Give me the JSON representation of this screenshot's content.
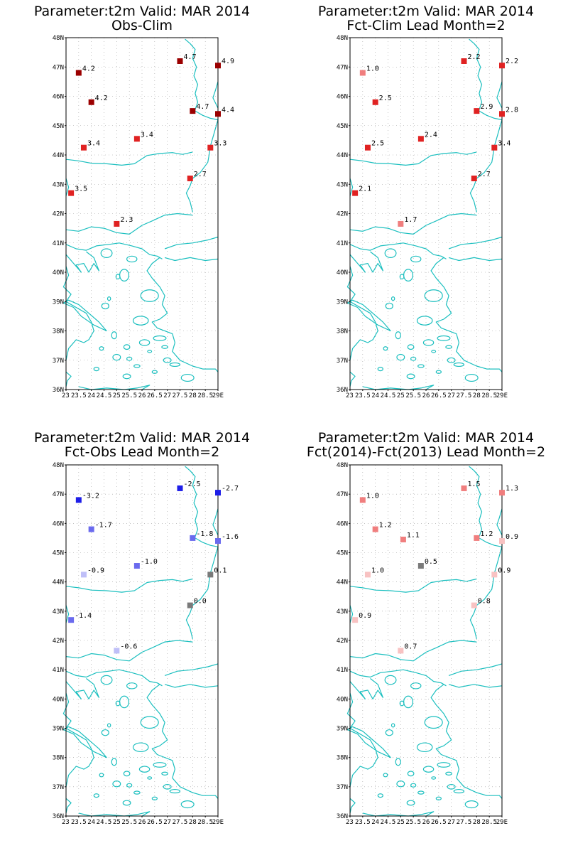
{
  "colors": {
    "coast": "#1bbfbf",
    "grid": "#9a9a9a",
    "neutral": "#7a7a7a"
  },
  "axes": {
    "lon_ticks": [
      "23",
      "23.5",
      "24",
      "24.5",
      "25",
      "25.5",
      "26",
      "26.5",
      "27",
      "27.5",
      "28",
      "28.5",
      "29E"
    ],
    "lat_ticks": [
      "36N",
      "37N",
      "38N",
      "39N",
      "40N",
      "41N",
      "42N",
      "43N",
      "44N",
      "45N",
      "46N",
      "47N",
      "48N"
    ]
  },
  "panels": [
    {
      "title1": "Parameter:t2m Valid: MAR 2014",
      "title2": "Obs-Clim",
      "stations": [
        {
          "lon": 23.5,
          "lat": 46.8,
          "value": "4.2",
          "color": "#9b0000"
        },
        {
          "lon": 24.0,
          "lat": 45.8,
          "value": "4.2",
          "color": "#9b0000"
        },
        {
          "lon": 27.5,
          "lat": 47.2,
          "value": "4.7",
          "color": "#9b0000"
        },
        {
          "lon": 29.0,
          "lat": 47.05,
          "value": "4.9",
          "color": "#9b0000"
        },
        {
          "lon": 28.0,
          "lat": 45.5,
          "value": "4.7",
          "color": "#9b0000"
        },
        {
          "lon": 29.0,
          "lat": 45.4,
          "value": "4.4",
          "color": "#9b0000"
        },
        {
          "lon": 23.7,
          "lat": 44.25,
          "value": "3.4",
          "color": "#e02222"
        },
        {
          "lon": 25.8,
          "lat": 44.55,
          "value": "3.4",
          "color": "#e02222"
        },
        {
          "lon": 28.7,
          "lat": 44.25,
          "value": "3.3",
          "color": "#e02222"
        },
        {
          "lon": 27.9,
          "lat": 43.2,
          "value": "2.7",
          "color": "#e02222"
        },
        {
          "lon": 23.2,
          "lat": 42.7,
          "value": "3.5",
          "color": "#e02222"
        },
        {
          "lon": 25.0,
          "lat": 41.65,
          "value": "2.3",
          "color": "#e02222"
        }
      ]
    },
    {
      "title1": "Parameter:t2m Valid: MAR 2014",
      "title2": "Fct-Clim Lead Month=2",
      "stations": [
        {
          "lon": 23.5,
          "lat": 46.8,
          "value": "1.0",
          "color": "#f07e7e"
        },
        {
          "lon": 24.0,
          "lat": 45.8,
          "value": "2.5",
          "color": "#e02222"
        },
        {
          "lon": 27.5,
          "lat": 47.2,
          "value": "2.2",
          "color": "#e02222"
        },
        {
          "lon": 29.0,
          "lat": 47.05,
          "value": "2.2",
          "color": "#e02222"
        },
        {
          "lon": 28.0,
          "lat": 45.5,
          "value": "2.9",
          "color": "#e02222"
        },
        {
          "lon": 29.0,
          "lat": 45.4,
          "value": "2.8",
          "color": "#e02222"
        },
        {
          "lon": 23.7,
          "lat": 44.25,
          "value": "2.5",
          "color": "#e02222"
        },
        {
          "lon": 25.8,
          "lat": 44.55,
          "value": "2.4",
          "color": "#e02222"
        },
        {
          "lon": 28.7,
          "lat": 44.25,
          "value": "3.4",
          "color": "#e02222"
        },
        {
          "lon": 27.9,
          "lat": 43.2,
          "value": "2.7",
          "color": "#e02222"
        },
        {
          "lon": 23.2,
          "lat": 42.7,
          "value": "2.1",
          "color": "#e02222"
        },
        {
          "lon": 25.0,
          "lat": 41.65,
          "value": "1.7",
          "color": "#f07e7e"
        }
      ]
    },
    {
      "title1": "Parameter:t2m Valid: MAR 2014",
      "title2": "Fct-Obs Lead Month=2",
      "stations": [
        {
          "lon": 23.5,
          "lat": 46.8,
          "value": "-3.2",
          "color": "#1e1ee8"
        },
        {
          "lon": 24.0,
          "lat": 45.8,
          "value": "-1.7",
          "color": "#6a6aee"
        },
        {
          "lon": 27.5,
          "lat": 47.2,
          "value": "-2.5",
          "color": "#1e1ee8"
        },
        {
          "lon": 29.0,
          "lat": 47.05,
          "value": "-2.7",
          "color": "#1e1ee8"
        },
        {
          "lon": 28.0,
          "lat": 45.5,
          "value": "-1.8",
          "color": "#6a6aee"
        },
        {
          "lon": 29.0,
          "lat": 45.4,
          "value": "-1.6",
          "color": "#6a6aee"
        },
        {
          "lon": 23.7,
          "lat": 44.25,
          "value": "-0.9",
          "color": "#bfbff8"
        },
        {
          "lon": 25.8,
          "lat": 44.55,
          "value": "-1.0",
          "color": "#6a6aee"
        },
        {
          "lon": 28.7,
          "lat": 44.25,
          "value": "0.1",
          "color": "#7a7a7a"
        },
        {
          "lon": 27.9,
          "lat": 43.2,
          "value": "0.0",
          "color": "#7a7a7a"
        },
        {
          "lon": 23.2,
          "lat": 42.7,
          "value": "-1.4",
          "color": "#6a6aee"
        },
        {
          "lon": 25.0,
          "lat": 41.65,
          "value": "-0.6",
          "color": "#bfbff8"
        }
      ]
    },
    {
      "title1": "Parameter:t2m Valid: MAR 2014",
      "title2": "Fct(2014)-Fct(2013) Lead Month=2",
      "stations": [
        {
          "lon": 23.5,
          "lat": 46.8,
          "value": "1.0",
          "color": "#f07e7e"
        },
        {
          "lon": 24.0,
          "lat": 45.8,
          "value": "1.2",
          "color": "#f07e7e"
        },
        {
          "lon": 27.5,
          "lat": 47.2,
          "value": "1.5",
          "color": "#f07e7e"
        },
        {
          "lon": 29.0,
          "lat": 47.05,
          "value": "1.3",
          "color": "#f07e7e"
        },
        {
          "lon": 28.0,
          "lat": 45.5,
          "value": "1.2",
          "color": "#f07e7e"
        },
        {
          "lon": 29.0,
          "lat": 45.4,
          "value": "0.9",
          "color": "#f8c2c2"
        },
        {
          "lon": 25.1,
          "lat": 45.45,
          "value": "1.1",
          "color": "#f07e7e"
        },
        {
          "lon": 23.7,
          "lat": 44.25,
          "value": "1.0",
          "color": "#f8c2c2"
        },
        {
          "lon": 25.8,
          "lat": 44.55,
          "value": "0.5",
          "color": "#7a7a7a"
        },
        {
          "lon": 28.7,
          "lat": 44.25,
          "value": "0.9",
          "color": "#f8c2c2"
        },
        {
          "lon": 27.9,
          "lat": 43.2,
          "value": "0.8",
          "color": "#f8c2c2"
        },
        {
          "lon": 23.2,
          "lat": 42.7,
          "value": "0.9",
          "color": "#f8c2c2"
        },
        {
          "lon": 25.0,
          "lat": 41.65,
          "value": "0.7",
          "color": "#f8c2c2"
        }
      ]
    }
  ]
}
